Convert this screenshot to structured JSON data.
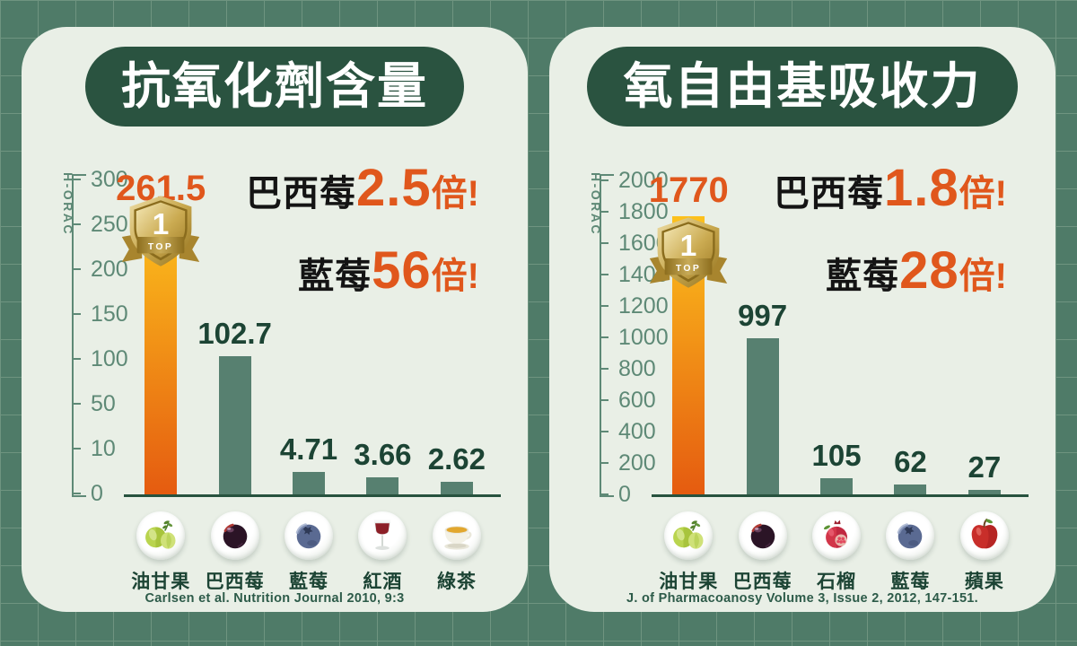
{
  "colors": {
    "page-bg": "#4f7b68",
    "grid-line": "#6f9480",
    "card-bg": "#e9efe6",
    "pill-green": "#2a5340",
    "bar-teal": "#578070",
    "bar-top": "#fcc11c",
    "bar-bottom": "#e55b10",
    "accent-orange": "#e0571c",
    "ink-green": "#1c4434",
    "axis-green": "#5e8976",
    "annot-black": "#141414",
    "source-green": "#2d5b49",
    "badge-gold": "#c9a94f"
  },
  "panels": [
    {
      "title": "抗氧化劑含量",
      "y_axis_label": "H-ORAC",
      "y_ticks": [
        "300",
        "250",
        "200",
        "150",
        "100",
        "50",
        "10",
        "0"
      ],
      "badge": {
        "rank": "1",
        "label": "TOP"
      },
      "annotations": [
        {
          "prefix": "巴西莓",
          "value": "2.5",
          "suffix": "倍!"
        },
        {
          "prefix": "藍莓",
          "value": "56",
          "suffix": "倍!"
        }
      ],
      "bars": [
        {
          "label": "油甘果",
          "value": "261.5",
          "icon": "amla-icon",
          "highlight": true
        },
        {
          "label": "巴西莓",
          "value": "102.7",
          "icon": "acai-berry-icon",
          "highlight": false
        },
        {
          "label": "藍莓",
          "value": "4.71",
          "icon": "blueberry-icon",
          "highlight": false
        },
        {
          "label": "紅酒",
          "value": "3.66",
          "icon": "red-wine-icon",
          "highlight": false
        },
        {
          "label": "綠茶",
          "value": "2.62",
          "icon": "green-tea-icon",
          "highlight": false
        }
      ],
      "source": "Carlsen et al. Nutrition Journal 2010, 9:3"
    },
    {
      "title": "氧自由基吸收力",
      "y_axis_label": "H-ORAC",
      "y_ticks": [
        "2000",
        "1800",
        "1600",
        "1400",
        "1200",
        "1000",
        "800",
        "600",
        "400",
        "200",
        "0"
      ],
      "badge": {
        "rank": "1",
        "label": "TOP"
      },
      "annotations": [
        {
          "prefix": "巴西莓",
          "value": "1.8",
          "suffix": "倍!"
        },
        {
          "prefix": "藍莓",
          "value": "28",
          "suffix": "倍!"
        }
      ],
      "bars": [
        {
          "label": "油甘果",
          "value": "1770",
          "icon": "amla-icon",
          "highlight": true
        },
        {
          "label": "巴西莓",
          "value": "997",
          "icon": "acai-berry-icon",
          "highlight": false
        },
        {
          "label": "石榴",
          "value": "105",
          "icon": "pomegranate-icon",
          "highlight": false
        },
        {
          "label": "藍莓",
          "value": "62",
          "icon": "blueberry-icon",
          "highlight": false
        },
        {
          "label": "蘋果",
          "value": "27",
          "icon": "apple-icon",
          "highlight": false
        }
      ],
      "source": "J. of Pharmacoanosy Volume 3, Issue 2, 2012, 147-151."
    }
  ],
  "chart_data": [
    {
      "type": "bar",
      "title": "抗氧化劑含量",
      "xlabel": "",
      "ylabel": "H-ORAC",
      "categories": [
        "油甘果",
        "巴西莓",
        "藍莓",
        "紅酒",
        "綠茶"
      ],
      "values": [
        261.5,
        102.7,
        4.71,
        3.66,
        2.62
      ],
      "yticks": [
        300,
        250,
        200,
        150,
        100,
        50,
        10,
        0
      ],
      "ylim": [
        0,
        300
      ],
      "grid": false,
      "legend": "none",
      "highlight_index": 0,
      "annotations": [
        "巴西莓2.5倍!",
        "藍莓56倍!"
      ],
      "source": "Carlsen et al. Nutrition Journal 2010, 9:3"
    },
    {
      "type": "bar",
      "title": "氧自由基吸收力",
      "xlabel": "",
      "ylabel": "H-ORAC",
      "categories": [
        "油甘果",
        "巴西莓",
        "石榴",
        "藍莓",
        "蘋果"
      ],
      "values": [
        1770,
        997,
        105,
        62,
        27
      ],
      "yticks": [
        2000,
        1800,
        1600,
        1400,
        1200,
        1000,
        800,
        600,
        400,
        200,
        0
      ],
      "ylim": [
        0,
        2000
      ],
      "grid": false,
      "legend": "none",
      "highlight_index": 0,
      "annotations": [
        "巴西莓1.8倍!",
        "藍莓28倍!"
      ],
      "source": "J. of Pharmacoanosy Volume 3, Issue 2, 2012, 147-151."
    }
  ]
}
